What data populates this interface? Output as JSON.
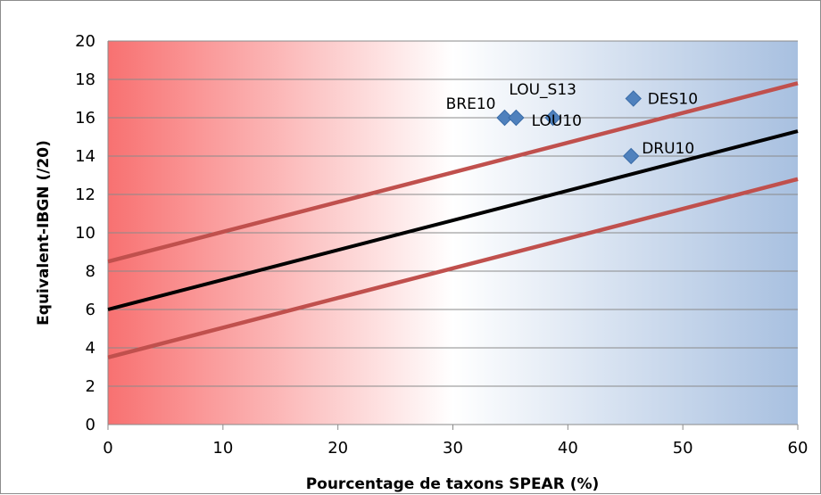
{
  "chart_data": {
    "type": "scatter",
    "xlabel": "Pourcentage de taxons SPEAR (%)",
    "ylabel": "Equivalent-IBGN (/20)",
    "xlim": [
      0,
      60
    ],
    "ylim": [
      0,
      20
    ],
    "x_ticks": [
      "0",
      "10",
      "20",
      "30",
      "40",
      "50",
      "60"
    ],
    "y_ticks": [
      "0",
      "2",
      "4",
      "6",
      "8",
      "10",
      "12",
      "14",
      "16",
      "18",
      "20"
    ],
    "grid": "horizontal",
    "background_gradient": [
      "#f87171",
      "#ffffff",
      "#a8c0e0"
    ],
    "points": [
      {
        "label": "BRE10",
        "x": 34.5,
        "y": 16
      },
      {
        "label": "LOU_S13",
        "x": 35.5,
        "y": 16
      },
      {
        "label": "LOU10",
        "x": 38.7,
        "y": 16
      },
      {
        "label": "DES10",
        "x": 45.7,
        "y": 17
      },
      {
        "label": "DRU10",
        "x": 45.5,
        "y": 14
      }
    ],
    "marker_color": "#4f81bd",
    "lines": [
      {
        "role": "regression",
        "color": "#000000",
        "x": [
          0,
          60
        ],
        "y": [
          6.0,
          15.3
        ]
      },
      {
        "role": "upper-bound",
        "color": "#c0504d",
        "x": [
          0,
          60
        ],
        "y": [
          8.5,
          17.8
        ]
      },
      {
        "role": "lower-bound",
        "color": "#c0504d",
        "x": [
          0,
          60
        ],
        "y": [
          3.5,
          12.8
        ]
      }
    ]
  }
}
